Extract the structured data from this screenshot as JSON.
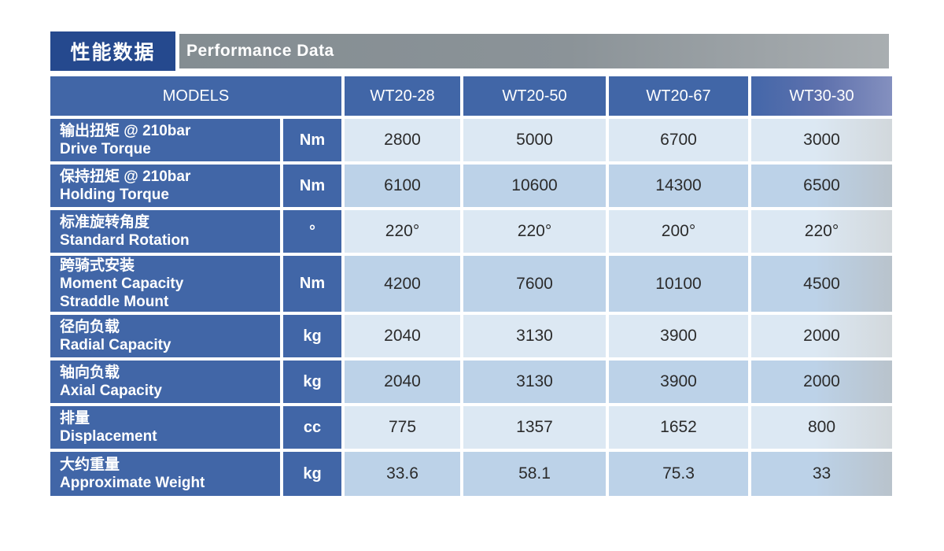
{
  "header": {
    "title_zh": "性能数据",
    "title_en": "Performance Data"
  },
  "table": {
    "models_label": "MODELS",
    "models": [
      "WT20-28",
      "WT20-50",
      "WT20-67",
      "WT30-30"
    ],
    "rows": [
      {
        "zh": "输出扭矩 @ 210bar",
        "en": "Drive Torque",
        "unit": "Nm",
        "values": [
          "2800",
          "5000",
          "6700",
          "3000"
        ]
      },
      {
        "zh": "保持扭矩 @ 210bar",
        "en": "Holding Torque",
        "unit": "Nm",
        "values": [
          "6100",
          "10600",
          "14300",
          "6500"
        ]
      },
      {
        "zh": "标准旋转角度",
        "en": "Standard Rotation",
        "unit": "°",
        "values": [
          "220°",
          "220°",
          "200°",
          "220°"
        ]
      },
      {
        "zh": "跨骑式安装",
        "en": "Moment Capacity",
        "en2": "Straddle Mount",
        "unit": "Nm",
        "values": [
          "4200",
          "7600",
          "10100",
          "4500"
        ]
      },
      {
        "zh": "径向负载",
        "en": "Radial Capacity",
        "unit": "kg",
        "values": [
          "2040",
          "3130",
          "3900",
          "2000"
        ]
      },
      {
        "zh": "轴向负载",
        "en": "Axial Capacity",
        "unit": "kg",
        "values": [
          "2040",
          "3130",
          "3900",
          "2000"
        ]
      },
      {
        "zh": "排量",
        "en": "Displacement",
        "unit": "cc",
        "values": [
          "775",
          "1357",
          "1652",
          "800"
        ]
      },
      {
        "zh": "大约重量",
        "en": "Approximate Weight",
        "unit": "kg",
        "values": [
          "33.6",
          "58.1",
          "75.3",
          "33"
        ]
      }
    ]
  },
  "colors": {
    "navy_box": "#25498e",
    "gray_bar": "#8b9398",
    "header_blue": "#4166a7",
    "row_light": "#dce8f3",
    "row_dark": "#bcd2e8",
    "value_text": "#2b2b2b"
  }
}
